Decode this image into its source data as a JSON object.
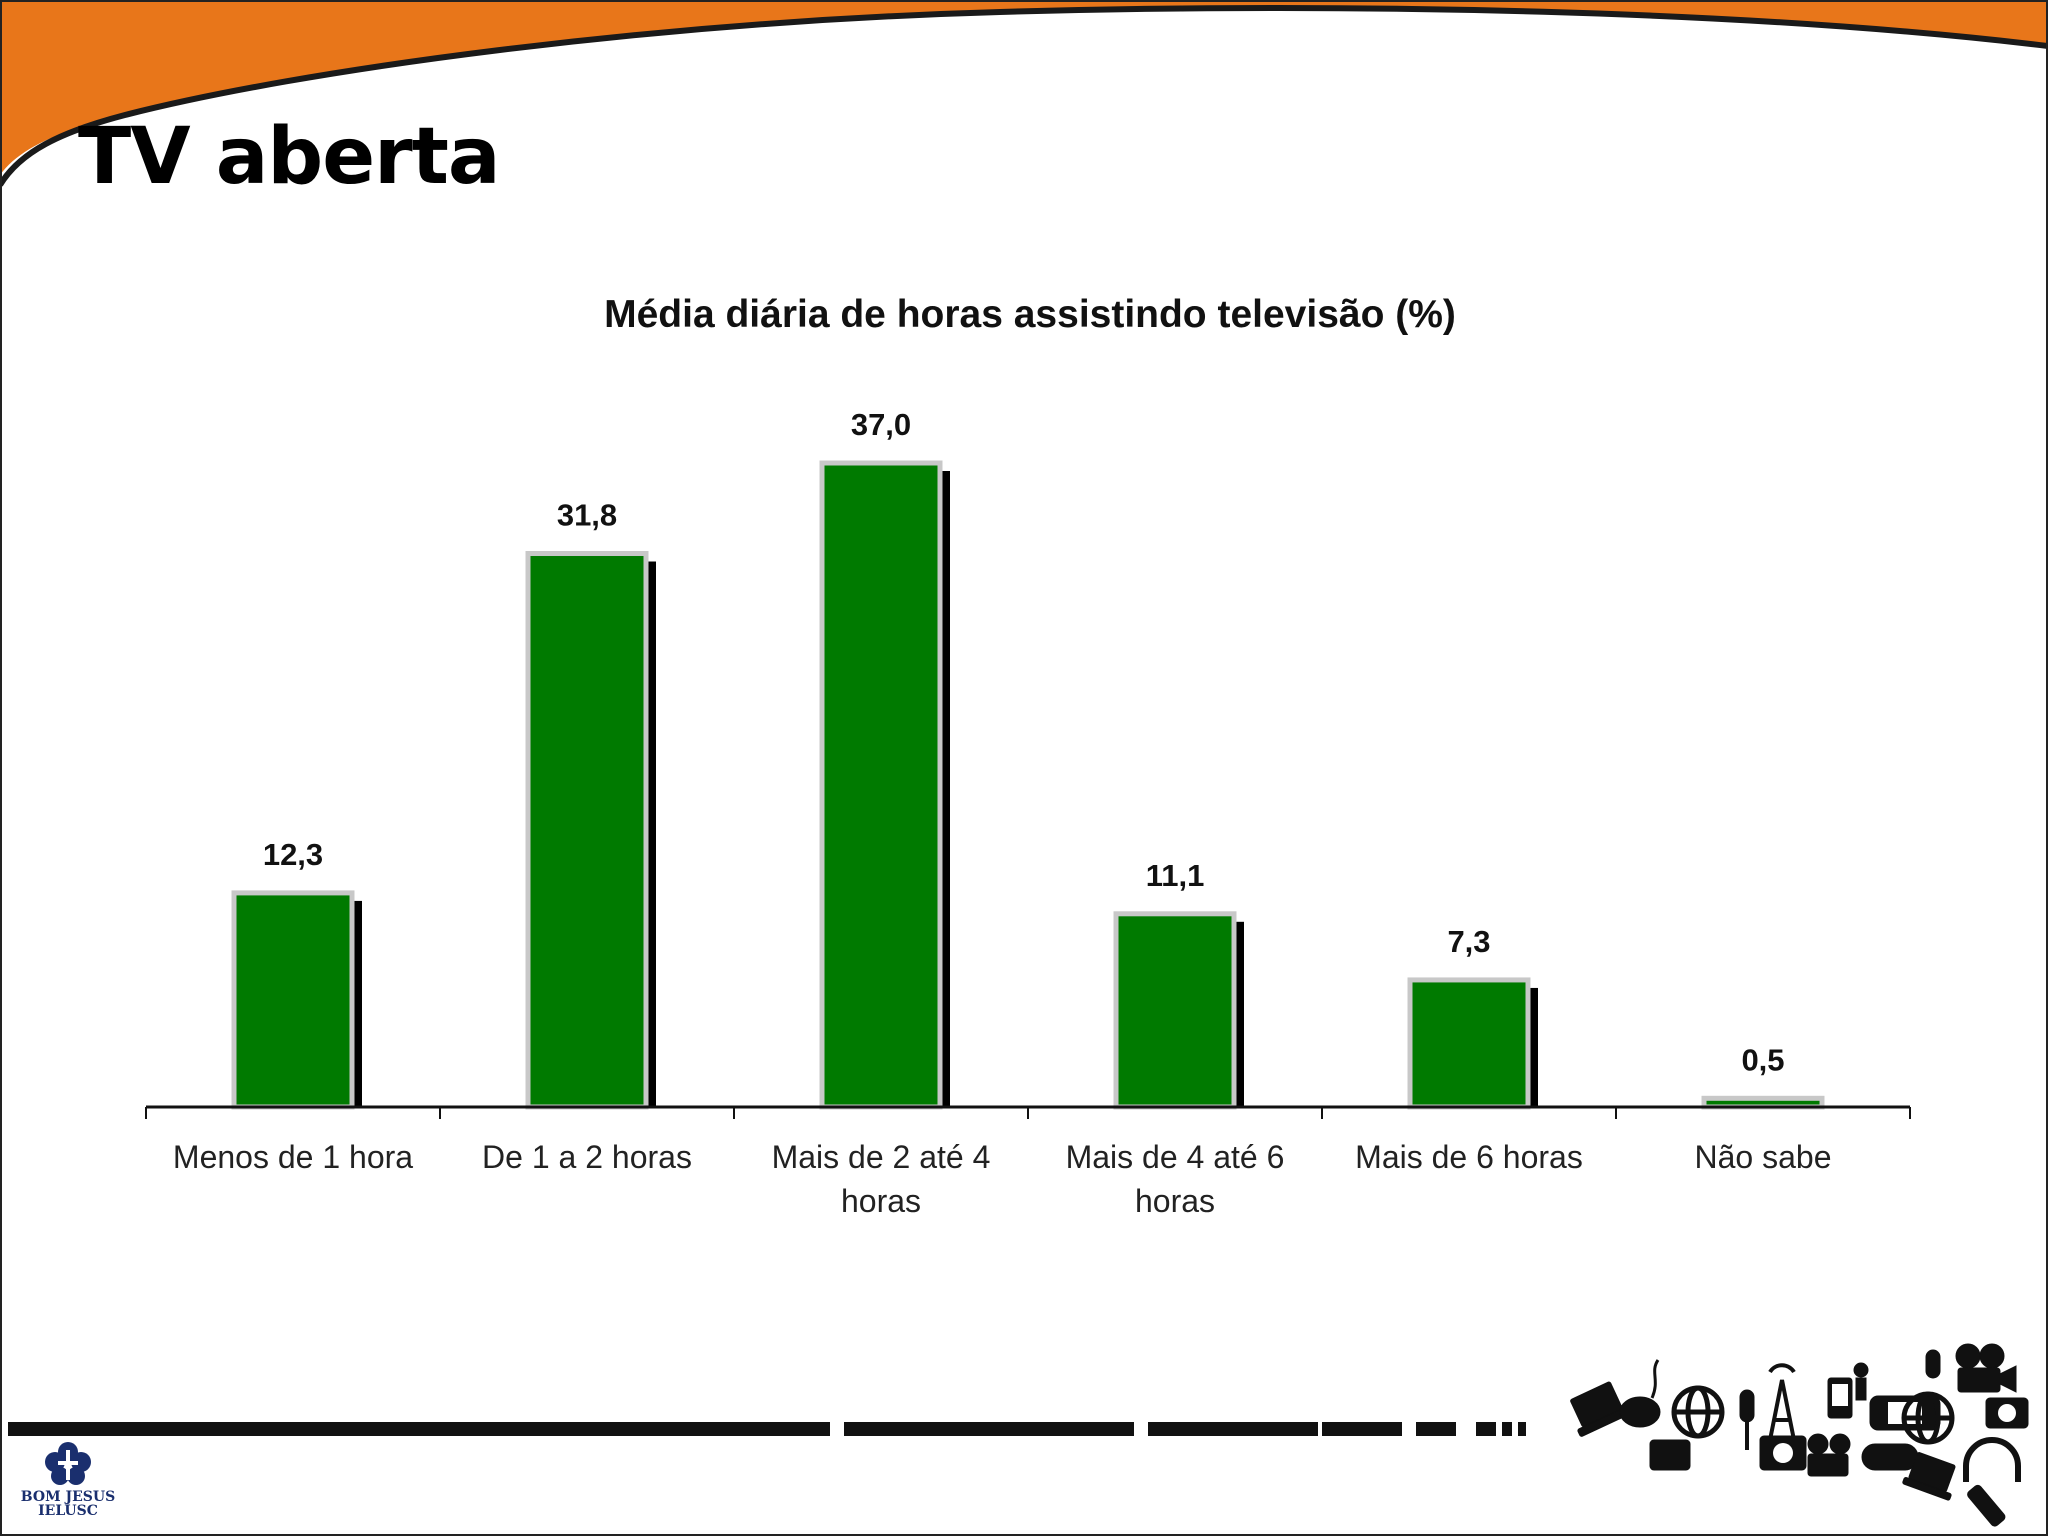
{
  "slide": {
    "title": "TV aberta"
  },
  "logo": {
    "line1": "BOM JESUS",
    "line2": "IELUSC"
  },
  "colors": {
    "accent_orange": "#e8761a",
    "bar_green": "#007a00",
    "bar_border": "#c8c8c8",
    "shadow": "#000000"
  },
  "chart_data": {
    "type": "bar",
    "title": "Média diária de horas assistindo televisão (%)",
    "xlabel": "",
    "ylabel": "",
    "ylim": [
      0,
      40
    ],
    "grid": false,
    "categories": [
      [
        "Menos de 1 hora"
      ],
      [
        "De 1 a 2 horas"
      ],
      [
        "Mais de 2 até 4",
        "horas"
      ],
      [
        "Mais de 4 até 6",
        "horas"
      ],
      [
        "Mais de 6 horas"
      ],
      [
        "Não sabe"
      ]
    ],
    "values": [
      12.3,
      31.8,
      37.0,
      11.1,
      7.3,
      0.5
    ],
    "value_labels": [
      "12,3",
      "31,8",
      "37,0",
      "11,1",
      "7,3",
      "0,5"
    ]
  }
}
